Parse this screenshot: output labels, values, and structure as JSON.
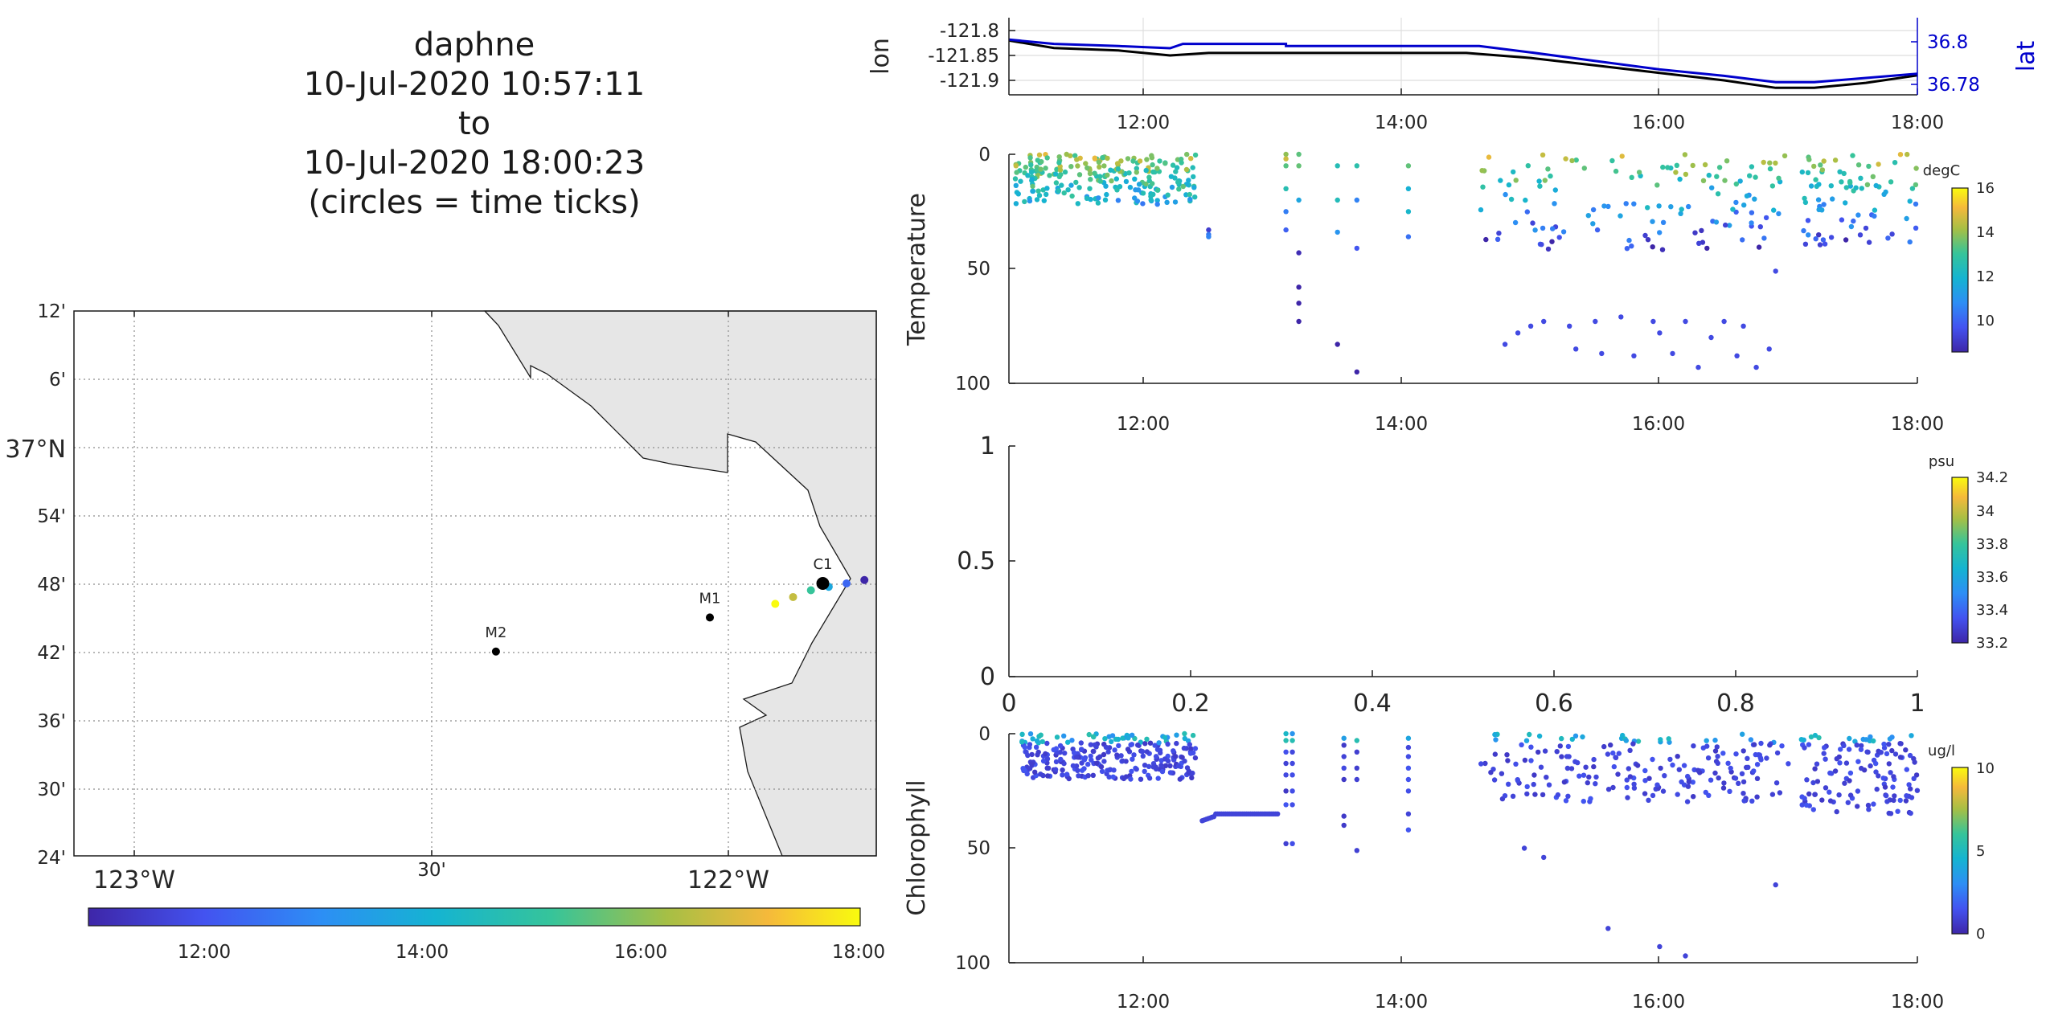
{
  "title": [
    "daphne",
    "10-Jul-2020 10:57:11",
    "to",
    "10-Jul-2020 18:00:23",
    "(circles = time ticks)"
  ],
  "chart_data": [
    {
      "type": "scatter",
      "name": "map",
      "lat_ticks": [
        "12'",
        "6'",
        "37°N",
        "54'",
        "48'",
        "42'",
        "36'",
        "30'",
        "24'"
      ],
      "lon_ticks": [
        "123°W",
        "30'",
        "122°W"
      ],
      "lat_range": [
        36.4,
        37.2
      ],
      "lon_range": [
        -123.1,
        -121.75
      ],
      "stations": [
        {
          "label": "M2",
          "lon": -122.39,
          "lat": 36.7
        },
        {
          "label": "M1",
          "lon": -122.03,
          "lat": 36.75
        },
        {
          "label": "C1",
          "lon": -121.84,
          "lat": 36.8
        }
      ],
      "track": {
        "lon": [
          -121.92,
          -121.89,
          -121.86,
          -121.83,
          -121.8,
          -121.77
        ],
        "lat": [
          36.77,
          36.78,
          36.79,
          36.795,
          36.8,
          36.805
        ]
      },
      "colorbar": {
        "ticks": [
          "12:00",
          "14:00",
          "16:00",
          "18:00"
        ],
        "range": [
          "10:57",
          "18:00"
        ]
      }
    },
    {
      "type": "line",
      "name": "lon-lat",
      "ylabel": "lon",
      "y2label": "lat",
      "yticks": [
        "-121.8",
        "-121.85",
        "-121.9"
      ],
      "y2ticks": [
        "36.8",
        "36.78"
      ],
      "xticks": [
        "12:00",
        "14:00",
        "16:00",
        "18:00"
      ],
      "x_range_hours": [
        10.95,
        18.0
      ],
      "series": [
        {
          "name": "lon",
          "color": "#000000",
          "x": [
            10.95,
            11.3,
            11.8,
            12.2,
            12.5,
            13.1,
            13.5,
            14.0,
            14.5,
            15.0,
            15.5,
            16.0,
            16.5,
            16.9,
            17.2,
            17.6,
            18.0
          ],
          "y": [
            -121.82,
            -121.835,
            -121.84,
            -121.85,
            -121.845,
            -121.845,
            -121.845,
            -121.845,
            -121.845,
            -121.855,
            -121.87,
            -121.885,
            -121.9,
            -121.915,
            -121.915,
            -121.905,
            -121.89
          ]
        },
        {
          "name": "lat",
          "color": "#0000cc",
          "x": [
            10.95,
            11.3,
            11.8,
            12.2,
            12.3,
            13.1,
            13.1,
            14.0,
            14.6,
            15.0,
            15.5,
            16.0,
            16.5,
            16.9,
            17.2,
            17.6,
            18.0
          ],
          "y": [
            36.801,
            36.799,
            36.798,
            36.797,
            36.799,
            36.799,
            36.798,
            36.798,
            36.798,
            36.795,
            36.791,
            36.787,
            36.784,
            36.781,
            36.781,
            36.783,
            36.785
          ]
        }
      ]
    },
    {
      "type": "scatter",
      "name": "temperature",
      "ylabel": "Temperature",
      "ylim": [
        100,
        0
      ],
      "yticks": [
        "0",
        "50",
        "100"
      ],
      "xticks": [
        "12:00",
        "14:00",
        "16:00",
        "18:00"
      ],
      "colorbar": {
        "label": "degC",
        "ticks": [
          "16",
          "14",
          "12",
          "10"
        ],
        "range": [
          8.5,
          16
        ]
      }
    },
    {
      "type": "scatter",
      "name": "salinity",
      "ylim": [
        0,
        1
      ],
      "yticks": [
        "1",
        "0.5",
        "0"
      ],
      "xticks": [
        "0",
        "0.2",
        "0.4",
        "0.6",
        "0.8",
        "1"
      ],
      "colorbar": {
        "label": "psu",
        "ticks": [
          "34.2",
          "34",
          "33.8",
          "33.6",
          "33.4",
          "33.2"
        ],
        "range": [
          33.2,
          34.2
        ]
      }
    },
    {
      "type": "scatter",
      "name": "chlorophyll",
      "ylabel": "Chlorophyll",
      "ylim": [
        100,
        0
      ],
      "yticks": [
        "0",
        "50",
        "100"
      ],
      "xticks": [
        "12:00",
        "14:00",
        "16:00",
        "18:00"
      ],
      "colorbar": {
        "label": "ug/l",
        "ticks": [
          "10",
          "5",
          "0"
        ],
        "range": [
          0,
          10
        ]
      }
    }
  ]
}
